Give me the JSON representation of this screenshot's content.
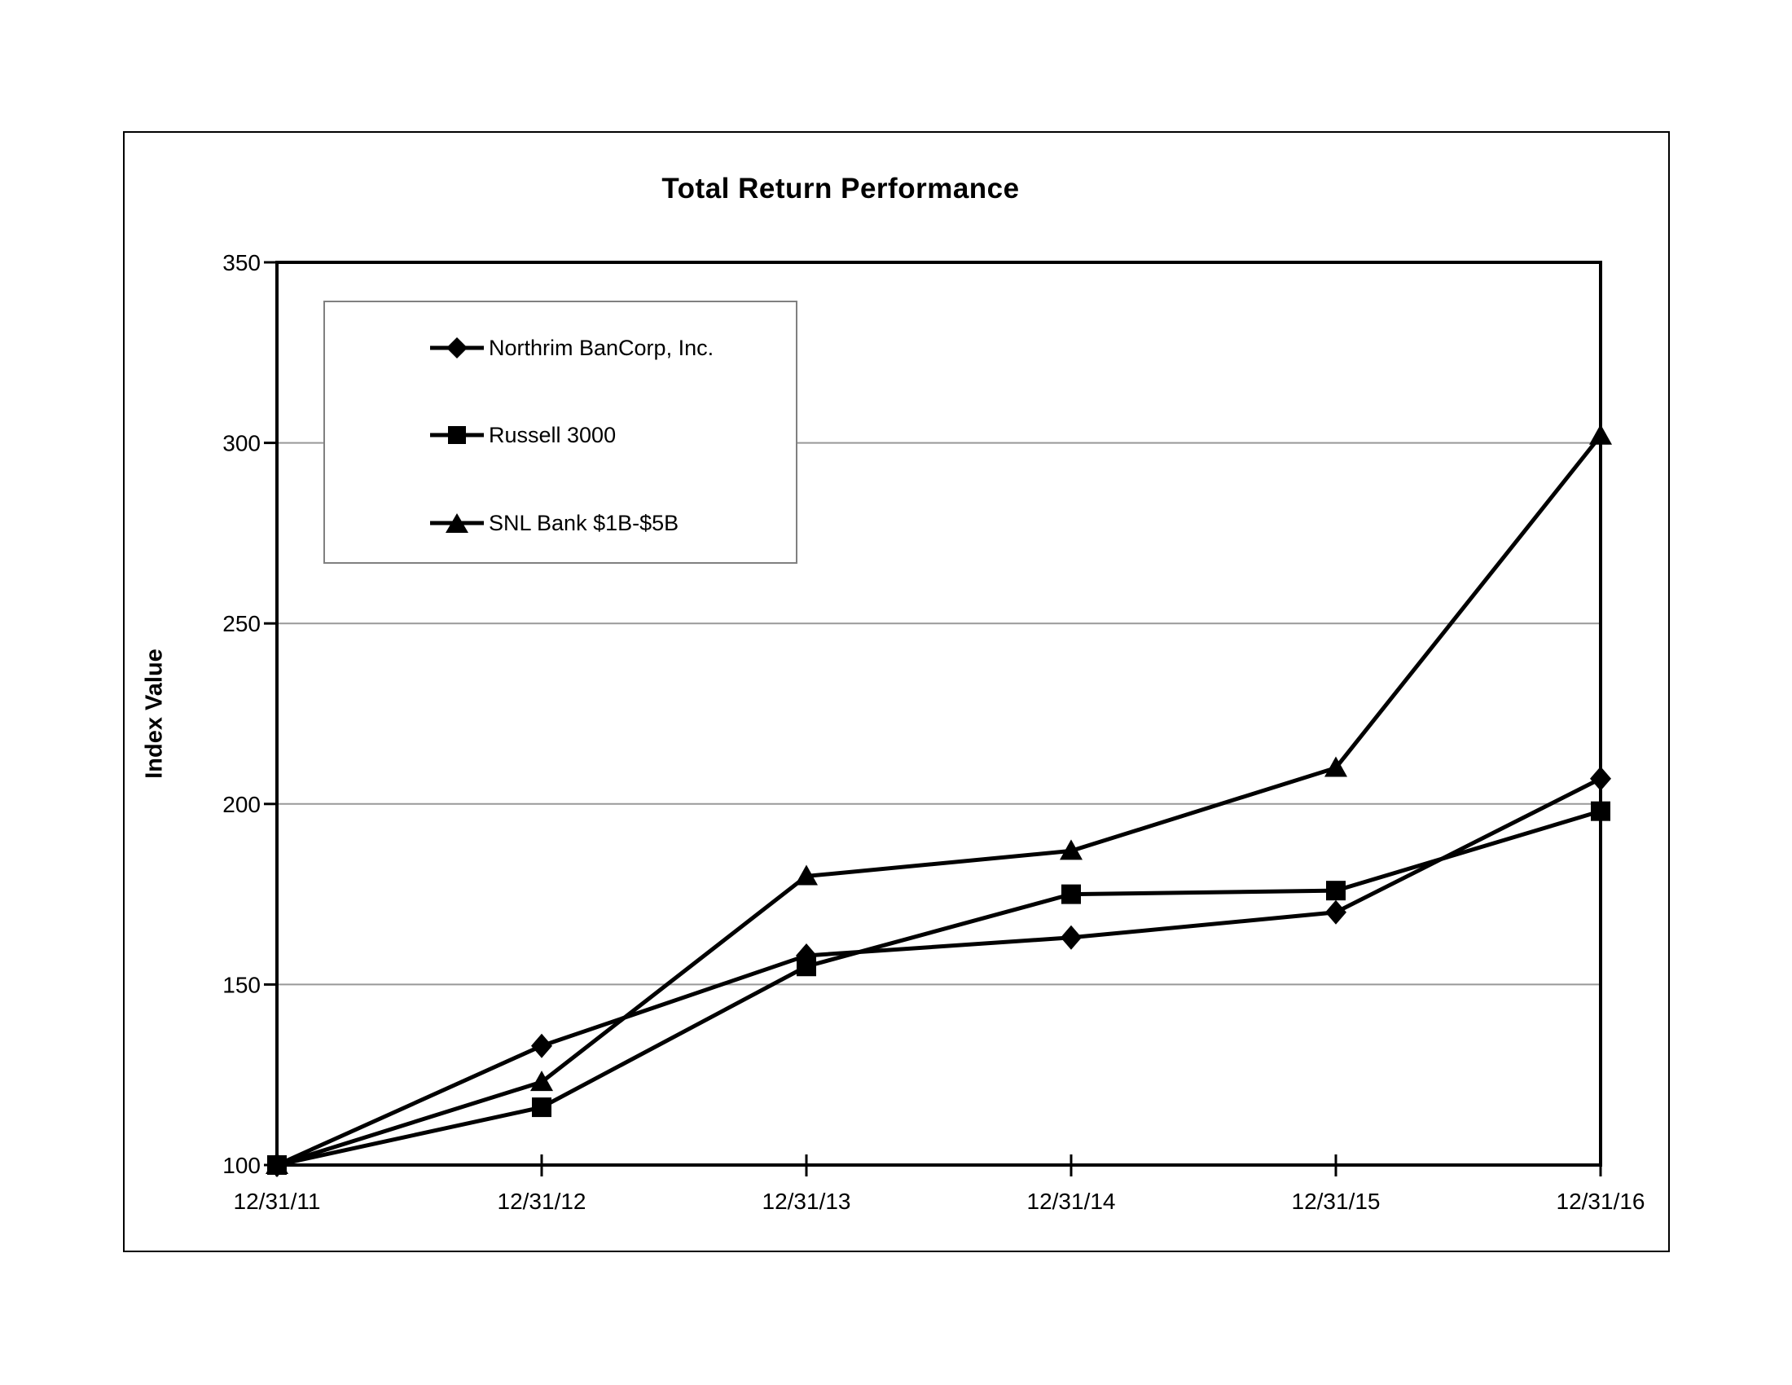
{
  "title": "Total Return Performance",
  "chart_data": {
    "type": "line",
    "title": "Total Return Performance",
    "xlabel": "",
    "ylabel": "Index Value",
    "categories": [
      "12/31/11",
      "12/31/12",
      "12/31/13",
      "12/31/14",
      "12/31/15",
      "12/31/16"
    ],
    "series": [
      {
        "name": "Northrim BanCorp, Inc.",
        "marker": "diamond",
        "values": [
          100,
          133,
          158,
          163,
          170,
          207
        ]
      },
      {
        "name": "Russell 3000",
        "marker": "square",
        "values": [
          100,
          116,
          155,
          175,
          176,
          198
        ]
      },
      {
        "name": "SNL Bank $1B-$5B",
        "marker": "triangle",
        "values": [
          100,
          123,
          180,
          187,
          210,
          302
        ]
      }
    ],
    "ylim": [
      100,
      350
    ],
    "yticks": [
      100,
      150,
      200,
      250,
      300,
      350
    ],
    "grid": "horizontal-gray-lines",
    "legend_position": "upper-left-inside",
    "colors": {
      "series": "#000000",
      "axis": "#000000",
      "gridline": "#999999",
      "legend_border": "#808080",
      "background": "#ffffff"
    }
  }
}
